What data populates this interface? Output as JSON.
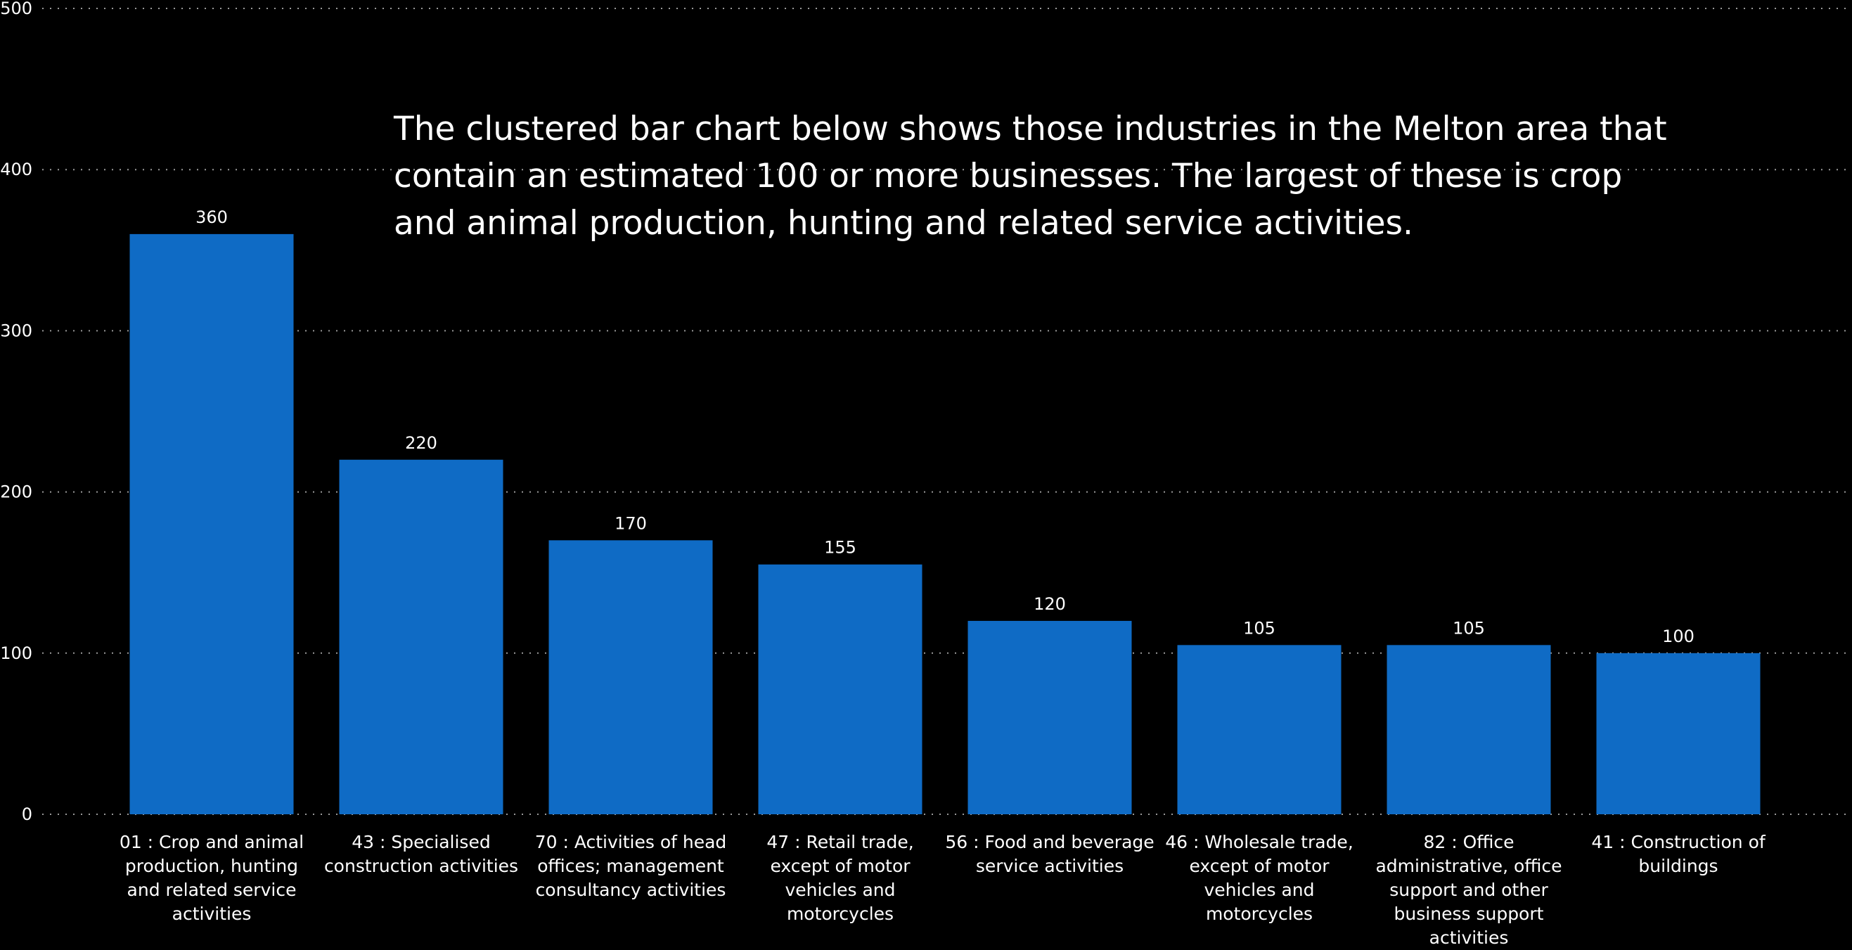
{
  "chart_data": {
    "type": "bar",
    "title": "",
    "annotation": "The clustered bar chart below shows those industries in the Melton area that contain an estimated 100 or more businesses.  The largest of these is crop and animal production, hunting and related service activities.",
    "xlabel": "",
    "ylabel": "",
    "ylim": [
      0,
      500
    ],
    "yticks": [
      0,
      100,
      200,
      300,
      400,
      500
    ],
    "grid": true,
    "categories": [
      "01 : Crop and animal production, hunting and related service activities",
      "43 : Specialised construction activities",
      "70 : Activities of head offices; management consultancy activities",
      "47 : Retail trade, except of motor vehicles and motorcycles",
      "56 : Food and beverage service activities",
      "46 : Wholesale trade, except of motor vehicles and motorcycles",
      "82 : Office administrative, office support and other business support activities",
      "41 : Construction of buildings"
    ],
    "values": [
      360,
      220,
      170,
      155,
      120,
      105,
      105,
      100
    ],
    "colors": {
      "bar": "#0F6BC5",
      "background": "#000000",
      "text": "#FFFFFF",
      "grid": "#9A9A9A"
    }
  }
}
